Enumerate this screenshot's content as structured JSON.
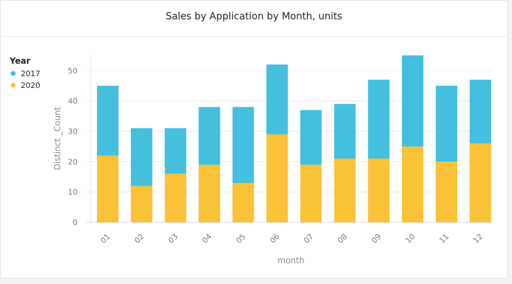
{
  "title": "Sales by Application by Month, units",
  "chart_data": {
    "type": "bar",
    "stacked": true,
    "categories": [
      "01",
      "02",
      "03",
      "04",
      "05",
      "06",
      "07",
      "08",
      "09",
      "10",
      "11",
      "12"
    ],
    "series": [
      {
        "name": "2020",
        "color": "#f9c237",
        "values": [
          22,
          12,
          16,
          19,
          13,
          29,
          19,
          21,
          21,
          25,
          20,
          26
        ]
      },
      {
        "name": "2017",
        "color": "#44bfdd",
        "values": [
          23,
          19,
          15,
          19,
          25,
          23,
          18,
          18,
          26,
          30,
          25,
          21
        ]
      }
    ],
    "legend_title": "Year",
    "legend_order": [
      "2017",
      "2020"
    ],
    "legend_position": "top-left",
    "xlabel": "month",
    "ylabel": "Distinct _Count",
    "ylim": [
      0,
      55
    ],
    "yticks": [
      0,
      10,
      20,
      30,
      40,
      50
    ],
    "grid": true
  }
}
